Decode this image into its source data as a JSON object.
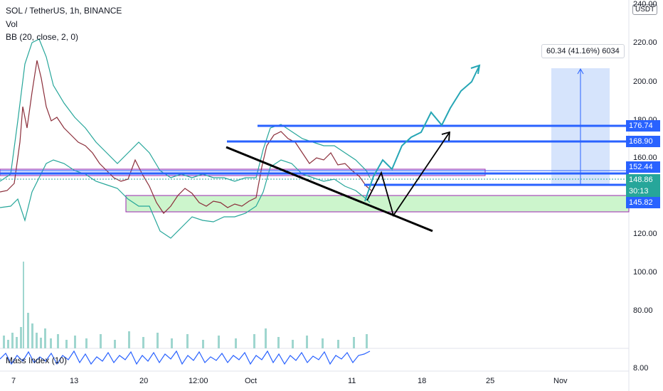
{
  "header": {
    "symbol": "SOL / TetherUS, 1h, BINANCE",
    "vol": "Vol",
    "bb": "BB (20, close, 2, 0)",
    "mass_index": "Mass Index (10)"
  },
  "currency_badge": "USDT",
  "y_axis_labels": [
    "240.00",
    "220.00",
    "200.00",
    "180.00",
    "160.00",
    "120.00",
    "100.00",
    "80.00",
    "8.00"
  ],
  "x_axis_labels": [
    "7",
    "13",
    "20",
    "12:00",
    "Oct",
    "11",
    "18",
    "25",
    "Nov"
  ],
  "price_tags": [
    {
      "label": "176.74",
      "color": "#2962ff"
    },
    {
      "label": "168.90",
      "color": "#2962ff"
    },
    {
      "label": "152.44",
      "color": "#2962ff"
    },
    {
      "label": "148.86",
      "color": "#26a69a"
    },
    {
      "label": "30:13",
      "color": "#26a69a"
    },
    {
      "label": "145.82",
      "color": "#2962ff"
    }
  ],
  "measure_label": "60.34 (41.16%) 6034",
  "colors": {
    "level_line": "#2962ff",
    "band": "#26a69a",
    "support_zone": "#ccf5cc",
    "resistance_zone_border": "#9c27b0",
    "measure_box": "#d6e4fc",
    "projection_teal": "#26a6b5",
    "projection_black": "#000000"
  },
  "chart_data": {
    "type": "line",
    "title": "SOL / TetherUS, 1h, BINANCE",
    "x": [
      "7",
      "13",
      "20",
      "12:00",
      "Oct",
      "11",
      "18",
      "25",
      "Nov"
    ],
    "y_range": [
      115,
      240
    ],
    "series": [
      {
        "name": "BB (20, close, 2, 0)",
        "values": [
          150,
          215,
          175,
          140,
          135,
          172,
          160,
          148,
          206
        ]
      }
    ],
    "levels": [
      176.74,
      168.9,
      152.44,
      148.86,
      145.82
    ],
    "annotations": [
      "60.34 (41.16%) 6034"
    ]
  }
}
